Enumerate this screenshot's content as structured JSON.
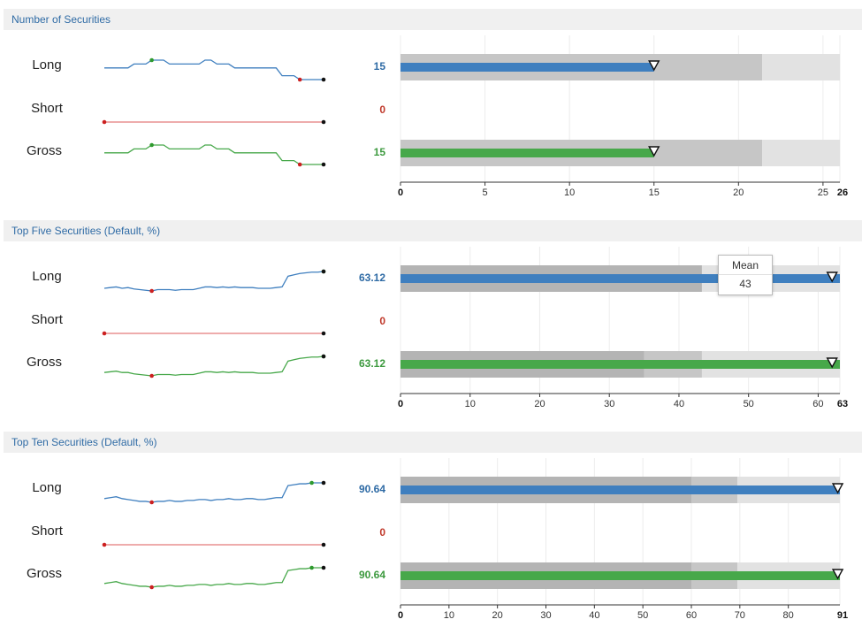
{
  "colors": {
    "long": "#3f7fbf",
    "short": "#e47b7b",
    "gross": "#47a84a",
    "header_text": "#2f6ba5",
    "header_bg": "#f0f0f0",
    "long_value": "#2f6ba5",
    "short_value": "#c0392b",
    "gross_value": "#3d9a3f",
    "band_dark": "#c6c6c6",
    "band_darker": "#b4b4b4",
    "band_light": "#e2e2e2",
    "min_dot": "#cc2020",
    "max_dot": "#2e9a2e",
    "last_dot": "#111111"
  },
  "tooltip": {
    "title": "Mean",
    "value": "43"
  },
  "chart_data": [
    {
      "type": "bar",
      "title": "Number of Securities",
      "categories": [
        "Long",
        "Short",
        "Gross"
      ],
      "values_text": [
        "15",
        "0",
        "15"
      ],
      "values": [
        15,
        0,
        15
      ],
      "target": 15,
      "bands": [
        21.4,
        26
      ],
      "xlim": [
        0,
        26
      ],
      "ticks": [
        0,
        5,
        10,
        15,
        20,
        25
      ],
      "tick_labels": [
        "0",
        "5",
        "10",
        "15",
        "20",
        "25"
      ],
      "end_label": "26",
      "sparklines": {
        "long": [
          15,
          15,
          15,
          15,
          15,
          16,
          16,
          16,
          17,
          17,
          17,
          16,
          16,
          16,
          16,
          16,
          16,
          17,
          17,
          16,
          16,
          16,
          15,
          15,
          15,
          15,
          15,
          15,
          15,
          15,
          13,
          13,
          13,
          12,
          12,
          12,
          12,
          12
        ],
        "short": [
          0,
          0,
          0,
          0,
          0,
          0,
          0,
          0,
          0,
          0,
          0,
          0,
          0,
          0,
          0,
          0,
          0,
          0,
          0,
          0,
          0,
          0,
          0,
          0,
          0,
          0,
          0,
          0,
          0,
          0,
          0,
          0,
          0,
          0,
          0,
          0,
          0,
          0
        ],
        "gross": [
          15,
          15,
          15,
          15,
          15,
          16,
          16,
          16,
          17,
          17,
          17,
          16,
          16,
          16,
          16,
          16,
          16,
          17,
          17,
          16,
          16,
          16,
          15,
          15,
          15,
          15,
          15,
          15,
          15,
          15,
          13,
          13,
          13,
          12,
          12,
          12,
          12,
          12
        ]
      }
    },
    {
      "type": "bar",
      "title": "Top Five Securities (Default, %)",
      "categories": [
        "Long",
        "Short",
        "Gross"
      ],
      "values_text": [
        "63.12",
        "0",
        "63.12"
      ],
      "values": [
        63.12,
        0,
        63.12
      ],
      "target": 62,
      "bands_long": [
        43.3,
        63.12
      ],
      "bands_gross": [
        35,
        43.3,
        63.12
      ],
      "xlim": [
        0,
        63.12
      ],
      "ticks": [
        0,
        10,
        20,
        30,
        40,
        50,
        60
      ],
      "tick_labels": [
        "0",
        "10",
        "20",
        "30",
        "40",
        "50",
        "60"
      ],
      "end_label": "63",
      "sparklines": {
        "long": [
          36,
          36.5,
          37,
          36,
          36.5,
          35.5,
          35,
          34.5,
          34,
          35,
          35,
          35,
          34.5,
          35,
          35,
          35,
          36,
          37,
          37,
          36.5,
          37,
          36.5,
          37,
          36.5,
          36.5,
          36.5,
          36,
          36,
          36,
          36.5,
          37,
          45,
          46,
          47,
          47.5,
          48,
          48,
          48.5
        ],
        "short": [
          0,
          0,
          0,
          0,
          0,
          0,
          0,
          0,
          0,
          0,
          0,
          0,
          0,
          0,
          0,
          0,
          0,
          0,
          0,
          0,
          0,
          0,
          0,
          0,
          0,
          0,
          0,
          0,
          0,
          0,
          0,
          0,
          0,
          0,
          0,
          0,
          0,
          0
        ],
        "gross": [
          40,
          40.5,
          41,
          40,
          40,
          39,
          38.5,
          38,
          37.5,
          38.5,
          38.5,
          38.5,
          38,
          38.5,
          38.5,
          38.5,
          39.5,
          40.5,
          40.5,
          40,
          40.5,
          40,
          40.5,
          40,
          40,
          40,
          39.5,
          39.5,
          39.5,
          40,
          40.5,
          48.5,
          49.5,
          50.5,
          51,
          51.5,
          51.5,
          52
        ]
      }
    },
    {
      "type": "bar",
      "title": "Top Ten Securities (Default, %)",
      "categories": [
        "Long",
        "Short",
        "Gross"
      ],
      "values_text": [
        "90.64",
        "0",
        "90.64"
      ],
      "values": [
        90.64,
        0,
        90.64
      ],
      "target": 90.2,
      "bands": [
        60,
        69.5,
        90.64
      ],
      "xlim": [
        0,
        90.64
      ],
      "ticks": [
        0,
        10,
        20,
        30,
        40,
        50,
        60,
        70,
        80
      ],
      "tick_labels": [
        "0",
        "10",
        "20",
        "30",
        "40",
        "50",
        "60",
        "70",
        "80"
      ],
      "end_label": "91",
      "sparklines": {
        "long": [
          66,
          66.5,
          67,
          66,
          65.5,
          65,
          64.5,
          64.5,
          64,
          64.5,
          64.5,
          65,
          64.5,
          64.5,
          65,
          65,
          65.5,
          65.5,
          65,
          65.5,
          65.5,
          66,
          65.5,
          65.5,
          66,
          66,
          65.5,
          65.5,
          66,
          66.5,
          66.5,
          73,
          73.5,
          74,
          74,
          74.5,
          74.5,
          74.5
        ],
        "short": [
          0,
          0,
          0,
          0,
          0,
          0,
          0,
          0,
          0,
          0,
          0,
          0,
          0,
          0,
          0,
          0,
          0,
          0,
          0,
          0,
          0,
          0,
          0,
          0,
          0,
          0,
          0,
          0,
          0,
          0,
          0,
          0,
          0,
          0,
          0,
          0,
          0,
          0
        ],
        "gross": [
          66,
          66.5,
          67,
          66,
          65.5,
          65,
          64.5,
          64.5,
          64,
          64.5,
          64.5,
          65,
          64.5,
          64.5,
          65,
          65,
          65.5,
          65.5,
          65,
          65.5,
          65.5,
          66,
          65.5,
          65.5,
          66,
          66,
          65.5,
          65.5,
          66,
          66.5,
          66.5,
          73,
          73.5,
          74,
          74,
          74.5,
          74.5,
          74.5
        ]
      }
    }
  ]
}
